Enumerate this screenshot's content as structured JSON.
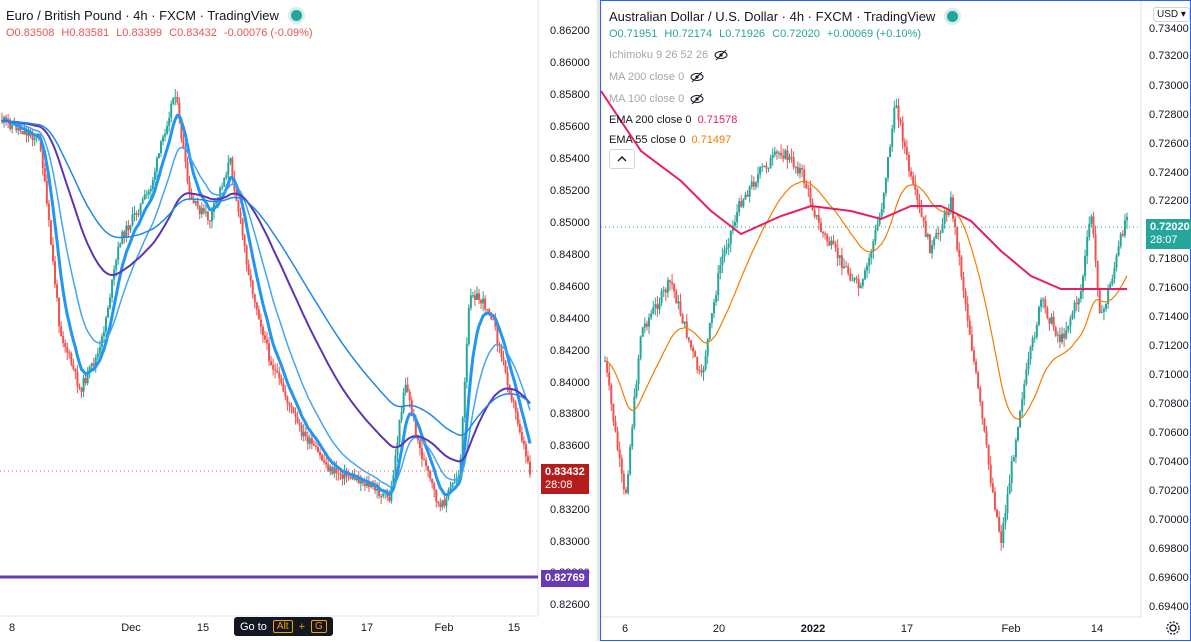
{
  "left": {
    "title": "Euro / British Pound · 4h · FXCM · TradingView",
    "ohlc": {
      "o": "O0.83508",
      "h": "H0.83581",
      "l": "L0.83399",
      "c": "C0.83432",
      "chg": "-0.00076 (-0.09%)"
    },
    "price_axis": [
      "0.86200",
      "0.86000",
      "0.85800",
      "0.85600",
      "0.85400",
      "0.85200",
      "0.85000",
      "0.84800",
      "0.84600",
      "0.84400",
      "0.84200",
      "0.84000",
      "0.83800",
      "0.83600",
      "0.83200",
      "0.83000",
      "0.82800",
      "0.82600"
    ],
    "time_axis": [
      "8",
      "Dec",
      "15",
      "17",
      "Feb",
      "15"
    ],
    "current_price": "0.83432",
    "countdown": "28:08",
    "hline_price": "0.82769",
    "goto_label": "Go to",
    "goto_keys": [
      "Alt",
      "+",
      "G"
    ],
    "colors": {
      "up": "#26a69a",
      "down": "#ef5350",
      "current": "#b71c1c",
      "hline": "#673ab7"
    }
  },
  "right": {
    "title": "Australian Dollar / U.S. Dollar · 4h · FXCM · TradingView",
    "ohlc": {
      "o": "O0.71951",
      "h": "H0.72174",
      "l": "L0.71926",
      "c": "C0.72020",
      "chg": "+0.00069 (+0.10%)"
    },
    "indicators": [
      {
        "label": "Ichimoku 9 26 52 26",
        "value": "",
        "hidden": true
      },
      {
        "label": "MA 200 close 0",
        "value": "",
        "hidden": true
      },
      {
        "label": "MA 100 close 0",
        "value": "",
        "hidden": true
      },
      {
        "label": "EMA 200 close 0",
        "value": "0.71578",
        "hidden": false,
        "color": "#e91e63"
      },
      {
        "label": "EMA 55 close 0",
        "value": "0.71497",
        "hidden": false,
        "color": "#f57c00"
      }
    ],
    "currency": "USD",
    "price_axis": [
      "0.73400",
      "0.73200",
      "0.73000",
      "0.72800",
      "0.72600",
      "0.72400",
      "0.72200",
      "0.71800",
      "0.71600",
      "0.71400",
      "0.71200",
      "0.71000",
      "0.70800",
      "0.70600",
      "0.70400",
      "0.70200",
      "0.70000",
      "0.69800",
      "0.69600",
      "0.69400"
    ],
    "time_axis": [
      "6",
      "20",
      "2022",
      "17",
      "Feb",
      "14"
    ],
    "current_price": "0.72020",
    "countdown": "28:07",
    "colors": {
      "up": "#26a69a",
      "down": "#ef5350",
      "current": "#26a69a"
    }
  }
}
